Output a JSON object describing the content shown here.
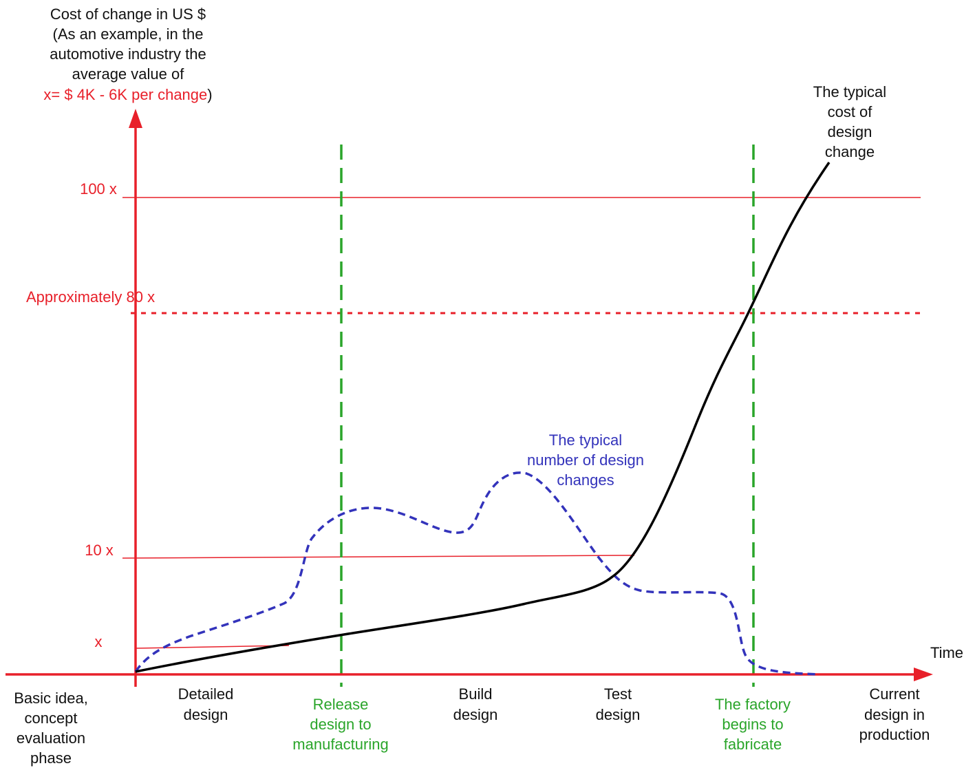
{
  "y_axis": {
    "title_lines": [
      "Cost of change in US $",
      "(As an example, in the",
      "automotive industry the",
      "average value of"
    ],
    "title_red_part": "x= $ 4K - 6K  per change",
    "title_close_paren": ")"
  },
  "x_axis": {
    "label": "Time"
  },
  "levels": {
    "l100": "100 x",
    "l80": "Approximately 80 x",
    "l10": "10 x",
    "l1": "x"
  },
  "phases": {
    "basic": [
      "Basic idea,",
      "concept",
      "evaluation",
      "phase"
    ],
    "detailed": [
      "Detailed",
      "design"
    ],
    "release": [
      "Release",
      "design to",
      "manufacturing"
    ],
    "build": [
      "Build",
      "design"
    ],
    "test": [
      "Test",
      "design"
    ],
    "factory": [
      "The factory",
      "begins to",
      "fabricate"
    ],
    "current": [
      "Current",
      "design in",
      "production"
    ]
  },
  "curves": {
    "cost": [
      "The typical",
      "cost of",
      "design",
      "change"
    ],
    "changes": [
      "The typical",
      "number of design",
      "changes"
    ]
  },
  "colors": {
    "axis": "#e8202a",
    "milestone": "#2aa52a",
    "cost_curve": "#000000",
    "changes_curve": "#3333bb"
  }
}
